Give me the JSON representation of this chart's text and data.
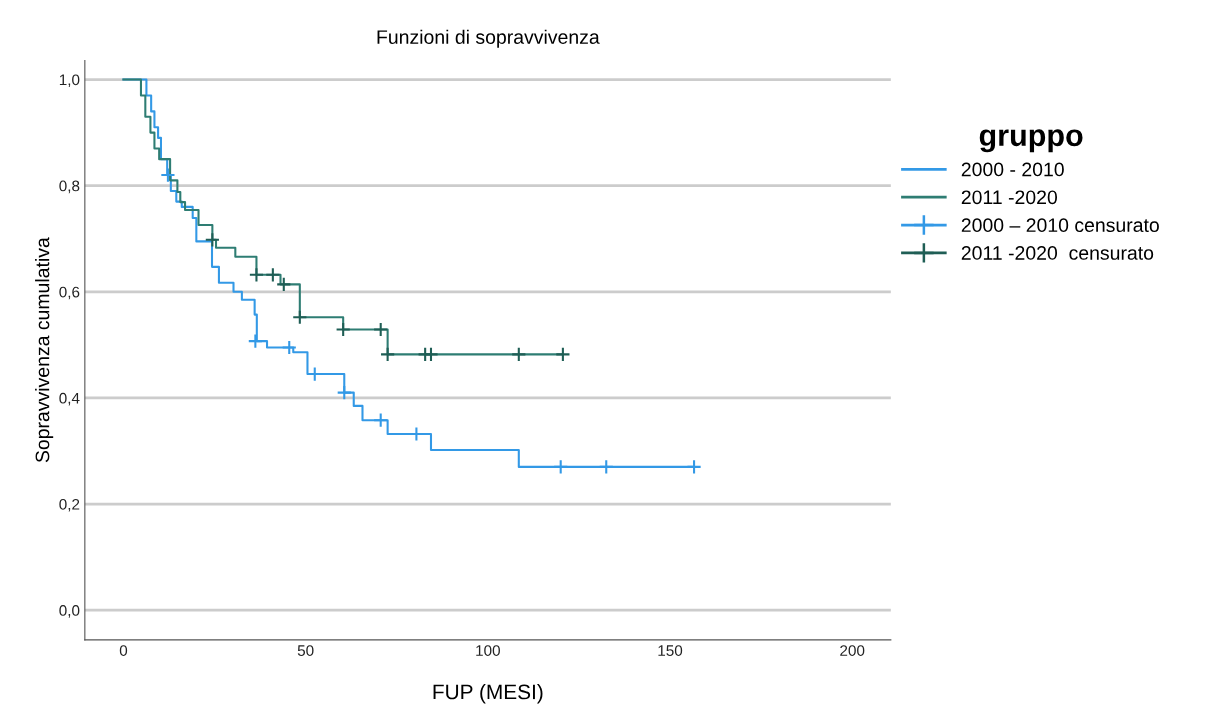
{
  "chart_data": {
    "type": "step",
    "title": "Funzioni di sopravvivenza",
    "xlabel": "FUP (MESI)",
    "ylabel": "Sopravvivenza cumulativa",
    "legend_title": "gruppo",
    "xlim": [
      -10.6,
      210.6
    ],
    "xticks": [
      0,
      50,
      100,
      150,
      200
    ],
    "ylim": [
      -0.056,
      1.036
    ],
    "yticks": [
      {
        "value": 0,
        "label": "0,0"
      },
      {
        "value": 0.2,
        "label": "0,2"
      },
      {
        "value": 0.4,
        "label": "0,4"
      },
      {
        "value": 0.6,
        "label": "0,6"
      },
      {
        "value": 0.8,
        "label": "0,8"
      },
      {
        "value": 1.0,
        "label": "1,0"
      }
    ],
    "grid": "y",
    "legend": "right",
    "series": [
      {
        "name": "2000 - 2010",
        "color": "#3399e6",
        "x": [
          0,
          6.3,
          7.6,
          8.5,
          9.5,
          10.3,
          12,
          13,
          14.5,
          16,
          19,
          20,
          24.3,
          26.2,
          30.2,
          32.5,
          36,
          36.6,
          39.4,
          46.6,
          50.5,
          60.6,
          63.2,
          65.6,
          72.5,
          84.4,
          108.5,
          156.6
        ],
        "values": [
          1,
          0.97,
          0.94,
          0.91,
          0.89,
          0.85,
          0.82,
          0.79,
          0.77,
          0.76,
          0.739,
          0.695,
          0.647,
          0.617,
          0.6,
          0.585,
          0.557,
          0.507,
          0.495,
          0.486,
          0.445,
          0.41,
          0.385,
          0.358,
          0.332,
          0.302,
          0.27,
          0.27
        ]
      },
      {
        "name": "2011 -2020",
        "color": "#2e7d73",
        "x": [
          0,
          4.8,
          6,
          7.4,
          8.5,
          9.8,
          12.8,
          14.8,
          15.6,
          16.9,
          20.6,
          24.4,
          25.4,
          30.7,
          36.5,
          43.1,
          48.4,
          60.3,
          72.5,
          120.6
        ],
        "values": [
          1,
          0.97,
          0.93,
          0.9,
          0.87,
          0.85,
          0.81,
          0.788,
          0.769,
          0.754,
          0.726,
          0.698,
          0.683,
          0.666,
          0.632,
          0.614,
          0.552,
          0.529,
          0.482,
          0.482
        ]
      },
      {
        "name": "2000 – 2010 censurato",
        "type": "scatter",
        "marker": "cross",
        "color": "#3399e6",
        "x": [
          12.2,
          36.2,
          45.5,
          52.5,
          60.6,
          70.6,
          80.4,
          120,
          132.5,
          156.6
        ],
        "values": [
          0.82,
          0.507,
          0.495,
          0.445,
          0.41,
          0.358,
          0.332,
          0.27,
          0.27,
          0.27
        ]
      },
      {
        "name": "2011 -2020  censurato",
        "type": "scatter",
        "marker": "cross",
        "color": "#1f5e55",
        "x": [
          24.4,
          36.5,
          41,
          44,
          48.4,
          60.3,
          70.6,
          72.5,
          82.8,
          84.4,
          108.5,
          120.6
        ],
        "values": [
          0.698,
          0.632,
          0.632,
          0.614,
          0.552,
          0.529,
          0.529,
          0.482,
          0.482,
          0.482,
          0.482,
          0.482
        ]
      }
    ]
  }
}
